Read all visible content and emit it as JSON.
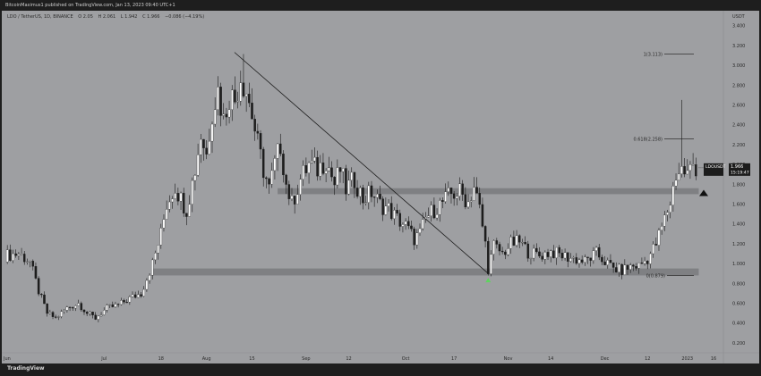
{
  "header": {
    "publish_line": "BitcoinMaximus1 published on TradingView.com, Jan 13, 2023 09:40 UTC+1"
  },
  "symbol_line": {
    "symbol": "LDO / TetherUS, 1D, BINANCE",
    "o": "O 2.05",
    "h": "H 2.061",
    "l": "L 1.942",
    "c": "C 1.966",
    "change": "−0.086 (−4.19%)"
  },
  "footer": {
    "logo_text": "TradingView"
  },
  "colors": {
    "background": "#9e9fa2",
    "candle_up": "#ffffff",
    "candle_down": "#1c1c1c",
    "zone": "#7b7c7f",
    "price_label_bg": "#1c1c1c",
    "arrow_green": "#5fd35f"
  },
  "chart_data": {
    "type": "candlestick",
    "currency_label": "USDT",
    "ylim": [
      0.1,
      3.55
    ],
    "y_ticks": [
      "3.400",
      "3.200",
      "3.000",
      "2.800",
      "2.600",
      "2.400",
      "2.200",
      "2.000",
      "1.800",
      "1.600",
      "1.400",
      "1.200",
      "1.000",
      "0.800",
      "0.600",
      "0.400",
      "0.200"
    ],
    "x_ticks": [
      "Jun",
      "Jul",
      "18",
      "Aug",
      "15",
      "Sep",
      "12",
      "Oct",
      "17",
      "Nov",
      "14",
      "Dec",
      "12",
      "2023",
      "16"
    ],
    "last_price": {
      "symbol": "LDOUSDT",
      "price": "1.966",
      "countdown": "15:19:47",
      "value": 1.966
    },
    "fib_levels": [
      {
        "label": "1(3.113)",
        "value": 3.113
      },
      {
        "label": "0.618(2.258)",
        "value": 2.258
      },
      {
        "label": "0(0.879)",
        "value": 0.879
      }
    ],
    "zones": [
      {
        "name": "resistance",
        "low": 1.7,
        "high": 1.76
      },
      {
        "name": "support",
        "low": 0.88,
        "high": 0.95
      }
    ],
    "trendline": {
      "start": {
        "x": "Aug 3",
        "y": 3.13
      },
      "end": {
        "x": "Nov 9",
        "y": 0.9
      }
    },
    "markers": [
      {
        "type": "arrow-up",
        "color": "green",
        "x": "Nov 9",
        "y": 0.82
      },
      {
        "type": "arrow-up",
        "color": "black",
        "x": "Jan 12",
        "y": 1.69
      }
    ],
    "price_anchors": [
      {
        "i": 0,
        "v": 1.08
      },
      {
        "i": 5,
        "v": 1.1
      },
      {
        "i": 9,
        "v": 1.02
      },
      {
        "i": 12,
        "v": 0.72
      },
      {
        "i": 15,
        "v": 0.5
      },
      {
        "i": 18,
        "v": 0.45
      },
      {
        "i": 22,
        "v": 0.55
      },
      {
        "i": 26,
        "v": 0.6
      },
      {
        "i": 29,
        "v": 0.5
      },
      {
        "i": 32,
        "v": 0.45
      },
      {
        "i": 36,
        "v": 0.55
      },
      {
        "i": 40,
        "v": 0.58
      },
      {
        "i": 44,
        "v": 0.65
      },
      {
        "i": 48,
        "v": 0.7
      },
      {
        "i": 52,
        "v": 1.0
      },
      {
        "i": 55,
        "v": 1.3
      },
      {
        "i": 57,
        "v": 1.6
      },
      {
        "i": 60,
        "v": 1.78
      },
      {
        "i": 62,
        "v": 1.65
      },
      {
        "i": 64,
        "v": 1.55
      },
      {
        "i": 67,
        "v": 1.95
      },
      {
        "i": 69,
        "v": 2.3
      },
      {
        "i": 71,
        "v": 2.1
      },
      {
        "i": 73,
        "v": 2.55
      },
      {
        "i": 75,
        "v": 2.75
      },
      {
        "i": 77,
        "v": 2.45
      },
      {
        "i": 79,
        "v": 2.7
      },
      {
        "i": 81,
        "v": 2.65
      },
      {
        "i": 83,
        "v": 2.9
      },
      {
        "i": 85,
        "v": 2.75
      },
      {
        "i": 87,
        "v": 2.5
      },
      {
        "i": 89,
        "v": 2.2
      },
      {
        "i": 91,
        "v": 1.95
      },
      {
        "i": 93,
        "v": 1.75
      },
      {
        "i": 95,
        "v": 2.0
      },
      {
        "i": 97,
        "v": 2.2
      },
      {
        "i": 99,
        "v": 1.8
      },
      {
        "i": 101,
        "v": 1.6
      },
      {
        "i": 104,
        "v": 1.85
      },
      {
        "i": 107,
        "v": 2.0
      },
      {
        "i": 110,
        "v": 1.95
      },
      {
        "i": 113,
        "v": 2.05
      },
      {
        "i": 116,
        "v": 1.8
      },
      {
        "i": 118,
        "v": 1.95
      },
      {
        "i": 120,
        "v": 1.75
      },
      {
        "i": 123,
        "v": 1.85
      },
      {
        "i": 126,
        "v": 1.65
      },
      {
        "i": 129,
        "v": 1.72
      },
      {
        "i": 132,
        "v": 1.6
      },
      {
        "i": 135,
        "v": 1.55
      },
      {
        "i": 138,
        "v": 1.45
      },
      {
        "i": 141,
        "v": 1.38
      },
      {
        "i": 144,
        "v": 1.25
      },
      {
        "i": 146,
        "v": 1.3
      },
      {
        "i": 148,
        "v": 1.45
      },
      {
        "i": 151,
        "v": 1.55
      },
      {
        "i": 154,
        "v": 1.62
      },
      {
        "i": 157,
        "v": 1.7
      },
      {
        "i": 160,
        "v": 1.72
      },
      {
        "i": 163,
        "v": 1.62
      },
      {
        "i": 165,
        "v": 1.78
      },
      {
        "i": 167,
        "v": 1.55
      },
      {
        "i": 169,
        "v": 1.2
      },
      {
        "i": 170,
        "v": 0.95
      },
      {
        "i": 172,
        "v": 1.18
      },
      {
        "i": 175,
        "v": 1.1
      },
      {
        "i": 178,
        "v": 1.2
      },
      {
        "i": 181,
        "v": 1.22
      },
      {
        "i": 184,
        "v": 1.12
      },
      {
        "i": 188,
        "v": 1.08
      },
      {
        "i": 192,
        "v": 1.12
      },
      {
        "i": 196,
        "v": 1.08
      },
      {
        "i": 200,
        "v": 1.05
      },
      {
        "i": 204,
        "v": 1.02
      },
      {
        "i": 208,
        "v": 1.1
      },
      {
        "i": 211,
        "v": 1.02
      },
      {
        "i": 214,
        "v": 0.95
      },
      {
        "i": 217,
        "v": 0.93
      },
      {
        "i": 220,
        "v": 0.97
      },
      {
        "i": 223,
        "v": 0.98
      },
      {
        "i": 226,
        "v": 1.05
      },
      {
        "i": 229,
        "v": 1.2
      },
      {
        "i": 232,
        "v": 1.45
      },
      {
        "i": 234,
        "v": 1.62
      },
      {
        "i": 236,
        "v": 1.9
      },
      {
        "i": 238,
        "v": 1.95
      },
      {
        "i": 240,
        "v": 1.9
      },
      {
        "i": 242,
        "v": 2.0
      },
      {
        "i": 244,
        "v": 1.95
      }
    ]
  }
}
